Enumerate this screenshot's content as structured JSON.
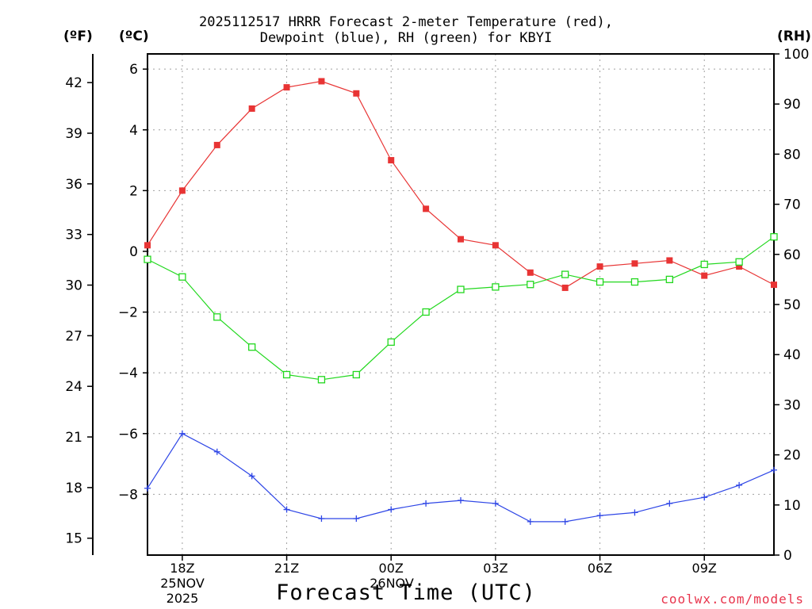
{
  "title": {
    "line1": "2025112517 HRRR Forecast 2-meter Temperature (red),",
    "line2": "Dewpoint (blue), RH (green) for KBYI"
  },
  "units": {
    "fahrenheit": "(ºF)",
    "celsius": "(ºC)",
    "rh": "(RH)"
  },
  "xaxis_title": "Forecast Time (UTC)",
  "credit": "coolwx.com/models",
  "first_date": {
    "date": "25NOV",
    "year": "2025"
  },
  "second_date": {
    "date": "26NOV"
  },
  "colors": {
    "temperature": "#e83434",
    "dewpoint": "#2e46e6",
    "rh": "#22d81e",
    "grid": "#a0a0a0"
  },
  "chart_data": {
    "type": "line",
    "x": [
      17,
      18,
      19,
      20,
      21,
      22,
      23,
      24,
      25,
      26,
      27,
      28,
      29,
      30,
      31,
      32,
      33,
      34,
      35
    ],
    "x_unit": "hours UTC since 2025-11-25 00Z",
    "xlim": [
      17,
      35
    ],
    "x_ticks": [
      {
        "x": 18,
        "label": "18Z"
      },
      {
        "x": 21,
        "label": "21Z"
      },
      {
        "x": 24,
        "label": "00Z"
      },
      {
        "x": 27,
        "label": "03Z"
      },
      {
        "x": 30,
        "label": "06Z"
      },
      {
        "x": 33,
        "label": "09Z"
      }
    ],
    "celsius_axis": {
      "ylim": [
        -10,
        6.5
      ],
      "ticks": [
        6,
        4,
        2,
        0,
        -2,
        -4,
        -6,
        -8
      ],
      "tick_labels": [
        "6",
        "4",
        "2",
        "0",
        "−2",
        "−4",
        "−6",
        "−8"
      ]
    },
    "fahrenheit_axis": {
      "ticks": [
        42,
        39,
        36,
        33,
        30,
        27,
        24,
        21,
        18,
        15
      ]
    },
    "rh_axis": {
      "ylim": [
        0,
        100
      ],
      "ticks": [
        100,
        90,
        80,
        70,
        60,
        50,
        40,
        30,
        20,
        10,
        0
      ]
    },
    "series": [
      {
        "name": "2-meter Temperature",
        "axis": "celsius",
        "color": "red",
        "marker": "filled-square",
        "values": [
          0.2,
          2.0,
          3.5,
          4.7,
          5.4,
          5.6,
          5.2,
          3.0,
          1.4,
          0.4,
          0.2,
          -0.7,
          -1.2,
          -0.5,
          -0.4,
          -0.3,
          -0.8,
          -0.5,
          -1.1
        ]
      },
      {
        "name": "Dewpoint",
        "axis": "celsius",
        "color": "blue",
        "marker": "plus",
        "values": [
          -7.8,
          -6.0,
          -6.6,
          -7.4,
          -8.5,
          -8.8,
          -8.8,
          -8.5,
          -8.3,
          -8.2,
          -8.3,
          -8.9,
          -8.9,
          -8.7,
          -8.6,
          -8.3,
          -8.1,
          -7.7,
          -7.2
        ]
      },
      {
        "name": "Relative Humidity",
        "axis": "rh",
        "color": "green",
        "marker": "open-square",
        "values": [
          59,
          55.5,
          47.5,
          41.5,
          36,
          35,
          36,
          42.5,
          48.5,
          53,
          53.5,
          54,
          56,
          54.5,
          54.5,
          55,
          58,
          58.5,
          63.5
        ]
      }
    ]
  }
}
